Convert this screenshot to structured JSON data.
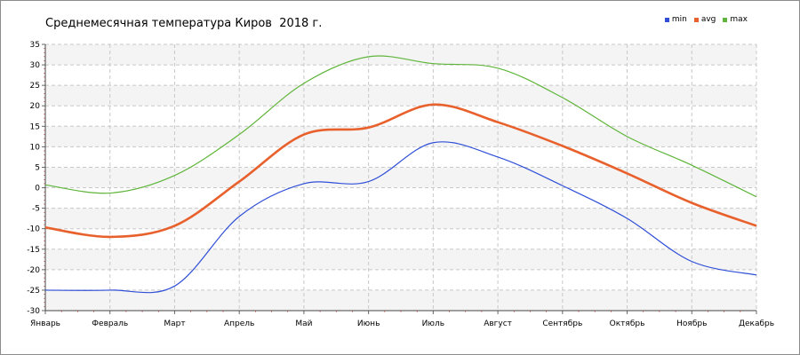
{
  "chart_data": {
    "type": "line",
    "title": "Среднемесячная температура Киров  2018 г.",
    "xlabel": "",
    "ylabel": "",
    "categories": [
      "Январь",
      "Февраль",
      "Март",
      "Апрель",
      "Май",
      "Июнь",
      "Июль",
      "Август",
      "Сентябрь",
      "Октябрь",
      "Ноябрь",
      "Декабрь"
    ],
    "ylim": [
      -30,
      35
    ],
    "yticks": [
      35,
      30,
      25,
      20,
      15,
      10,
      5,
      0,
      -5,
      -10,
      -15,
      -20,
      -25,
      -30
    ],
    "grid": true,
    "legend_position": "top-right",
    "series": [
      {
        "name": "min",
        "color": "#2f4fd8",
        "values": [
          -25,
          -25,
          -24,
          -7,
          1,
          1.5,
          11,
          7.5,
          0.5,
          -7.5,
          -18,
          -21.3
        ]
      },
      {
        "name": "avg",
        "color": "#e8602c",
        "values": [
          -9.7,
          -12,
          -9.3,
          1.5,
          13,
          14.7,
          20.3,
          16,
          10.2,
          3.5,
          -3.7,
          -9.3
        ]
      },
      {
        "name": "max",
        "color": "#5fb53a",
        "values": [
          0.7,
          -1.3,
          3,
          13,
          25.5,
          32,
          30.3,
          29.2,
          22,
          12.5,
          5.5,
          -2.2
        ]
      }
    ]
  }
}
